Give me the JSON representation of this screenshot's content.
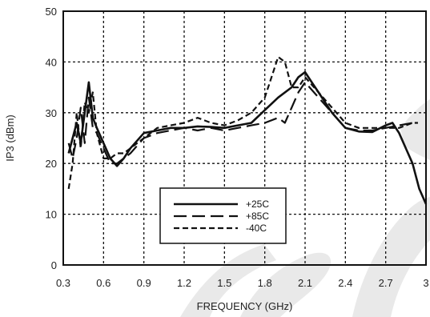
{
  "chart_data": {
    "type": "line",
    "xlabel": "FREQUENCY (GHz)",
    "ylabel": "IP3 (dBm)",
    "xlim": [
      0.3,
      3.0
    ],
    "ylim": [
      0,
      50
    ],
    "xticks": [
      "0.3",
      "0.6",
      "0.9",
      "1.2",
      "1.5",
      "1.8",
      "2.1",
      "2.4",
      "2.7",
      "3"
    ],
    "yticks": [
      "0",
      "10",
      "20",
      "30",
      "40",
      "50"
    ],
    "grid": true,
    "legend_position": "center",
    "series": [
      {
        "name": "+25C",
        "style": "solid",
        "color": "#111111",
        "x": [
          0.34,
          0.37,
          0.4,
          0.43,
          0.46,
          0.49,
          0.52,
          0.55,
          0.6,
          0.65,
          0.7,
          0.75,
          0.8,
          0.9,
          1.0,
          1.1,
          1.2,
          1.3,
          1.4,
          1.5,
          1.6,
          1.7,
          1.8,
          1.9,
          2.0,
          2.05,
          2.1,
          2.15,
          2.2,
          2.3,
          2.4,
          2.5,
          2.6,
          2.7,
          2.75,
          2.8,
          2.9,
          2.95,
          3.0
        ],
        "y": [
          22,
          25,
          28,
          24,
          30,
          36,
          29,
          27,
          24,
          21,
          19.5,
          21,
          23,
          26,
          26.5,
          27,
          27,
          27.3,
          27.2,
          27,
          27.5,
          28,
          30.5,
          33,
          35,
          37,
          38,
          36,
          34,
          30,
          27,
          26.3,
          26.2,
          27.5,
          28,
          26,
          20,
          15,
          12
        ]
      },
      {
        "name": "+85C",
        "style": "long-dash",
        "color": "#111111",
        "x": [
          0.34,
          0.37,
          0.4,
          0.43,
          0.46,
          0.49,
          0.52,
          0.55,
          0.6,
          0.65,
          0.7,
          0.75,
          0.8,
          0.9,
          1.0,
          1.1,
          1.2,
          1.3,
          1.4,
          1.5,
          1.6,
          1.7,
          1.8,
          1.9,
          1.95,
          2.0,
          2.05,
          2.1,
          2.2,
          2.3,
          2.4,
          2.5,
          2.6,
          2.7,
          2.8,
          2.9,
          2.94
        ],
        "y": [
          24,
          21,
          25,
          31,
          24,
          33,
          27,
          26,
          23,
          20,
          20,
          21,
          22,
          25,
          26,
          26.5,
          27,
          26.5,
          27,
          26.5,
          27,
          27.5,
          28,
          29,
          28,
          31,
          34,
          36,
          33,
          30,
          27,
          26.5,
          26.5,
          27,
          27.5,
          28,
          28
        ]
      },
      {
        "name": "-40C",
        "style": "short-dash",
        "color": "#111111",
        "x": [
          0.34,
          0.37,
          0.4,
          0.43,
          0.46,
          0.49,
          0.52,
          0.55,
          0.6,
          0.65,
          0.7,
          0.75,
          0.8,
          0.9,
          1.0,
          1.1,
          1.2,
          1.3,
          1.4,
          1.5,
          1.6,
          1.7,
          1.8,
          1.85,
          1.9,
          1.95,
          2.0,
          2.05,
          2.1,
          2.2,
          2.3,
          2.4,
          2.5,
          2.6,
          2.7,
          2.8,
          2.9,
          2.94
        ],
        "y": [
          15,
          20,
          30,
          23,
          32,
          30,
          34,
          26,
          21,
          21,
          22,
          22,
          23,
          25,
          27,
          27.5,
          28,
          29,
          28,
          27.5,
          28.5,
          30,
          33,
          37,
          41,
          40,
          35,
          35,
          37,
          34,
          31,
          28,
          27,
          27,
          27,
          27,
          28,
          28
        ]
      }
    ],
    "watermark": "Obsolete"
  }
}
